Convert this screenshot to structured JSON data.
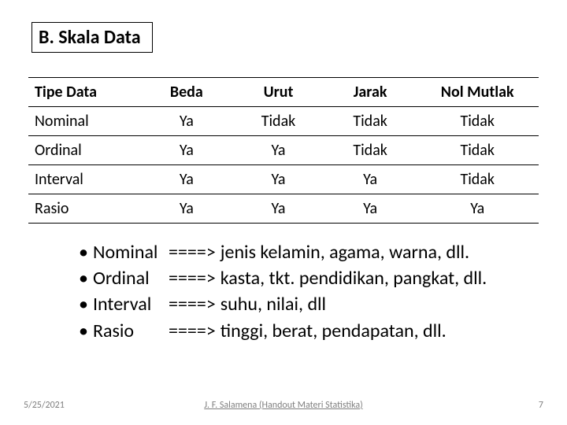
{
  "title": "B. Skala Data",
  "table": {
    "headers": [
      "Tipe Data",
      "Beda",
      "Urut",
      "Jarak",
      "Nol Mutlak"
    ],
    "col_widths": [
      "22%",
      "18%",
      "18%",
      "18%",
      "24%"
    ],
    "rows": [
      [
        "Nominal",
        "Ya",
        "Tidak",
        "Tidak",
        "Tidak"
      ],
      [
        "Ordinal",
        "Ya",
        "Ya",
        "Tidak",
        "Tidak"
      ],
      [
        "Interval",
        "Ya",
        "Ya",
        "Ya",
        "Tidak"
      ],
      [
        "Rasio",
        "Ya",
        "Ya",
        "Ya",
        "Ya"
      ]
    ]
  },
  "examples": {
    "bullet": "•",
    "arrow": "====>",
    "items": [
      {
        "label": "Nominal",
        "desc": "jenis kelamin, agama, warna, dll."
      },
      {
        "label": "Ordinal",
        "desc": "kasta, tkt. pendidikan, pangkat, dll."
      },
      {
        "label": "Interval",
        "desc": "suhu, nilai, dll"
      },
      {
        "label": "Rasio",
        "desc": " tinggi, berat, pendapatan, dll."
      }
    ]
  },
  "footer": {
    "date": "5/25/2021",
    "center": "J. F. Salamena (Handout Materi Statistika)",
    "page": "7"
  },
  "style": {
    "background": "#ffffff",
    "title_fontsize": 24,
    "table_fontsize": 20,
    "example_fontsize": 24,
    "footer_fontsize": 12,
    "footer_color": "#7f7f7f",
    "border_color": "#000000"
  }
}
